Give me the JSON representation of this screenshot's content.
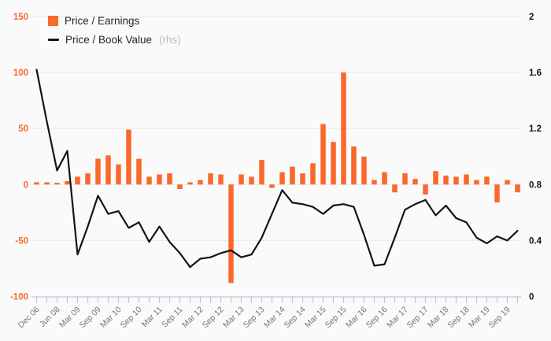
{
  "page": {
    "background": "#fafafa"
  },
  "legend": {
    "items": [
      {
        "label": "Price / Earnings",
        "suffix": "",
        "swatch": "bar",
        "color": "#f9692b"
      },
      {
        "label": "Price / Book Value",
        "suffix": "(rhs)",
        "swatch": "line",
        "color": "#141414"
      }
    ]
  },
  "chart_data": {
    "type": "combo-bar-line",
    "title": "",
    "x_count": 48,
    "x_label_every": 2,
    "x_tick_labels": [
      "Dec 06",
      "Jun 08",
      "Mar 09",
      "Sep 09",
      "Mar 10",
      "Sep 10",
      "Mar 11",
      "Sep 11",
      "Mar 12",
      "Sep 12",
      "Mar 13",
      "Sep 13",
      "Mar 14",
      "Sep 14",
      "Mar 15",
      "Sep 15",
      "Mar 16",
      "Sep 16",
      "Mar 17",
      "Sep 17",
      "Mar 18",
      "Sep 18",
      "Mar 19",
      "Sep 19"
    ],
    "series": [
      {
        "name": "Price / Earnings",
        "type": "bar",
        "axis": "left",
        "color": "#f9692b",
        "values": [
          2,
          2,
          1.5,
          3,
          7,
          10,
          23,
          26,
          18,
          49,
          23,
          7,
          9,
          10,
          -4,
          2,
          4,
          10,
          9,
          -88,
          9,
          7,
          22,
          -3,
          11,
          16,
          10,
          19,
          54,
          38,
          100,
          34,
          25,
          4,
          11,
          -7,
          10,
          5,
          -9,
          12,
          8,
          7,
          9,
          4,
          7,
          -16,
          4,
          -7
        ]
      },
      {
        "name": "Price / Book Value",
        "type": "line",
        "axis": "right",
        "color": "#141414",
        "values": [
          1.62,
          1.25,
          0.9,
          1.04,
          0.3,
          0.5,
          0.72,
          0.59,
          0.61,
          0.49,
          0.53,
          0.39,
          0.5,
          0.39,
          0.31,
          0.21,
          0.27,
          0.28,
          0.31,
          0.33,
          0.28,
          0.3,
          0.42,
          0.59,
          0.76,
          0.67,
          0.66,
          0.64,
          0.59,
          0.65,
          0.66,
          0.64,
          0.44,
          0.22,
          0.23,
          0.42,
          0.62,
          0.66,
          0.69,
          0.58,
          0.65,
          0.56,
          0.53,
          0.42,
          0.38,
          0.43,
          0.4,
          0.47
        ]
      }
    ],
    "left_axis": {
      "min": -100,
      "max": 150,
      "tick_values": [
        150,
        100,
        50,
        0,
        -50,
        -100
      ],
      "tick_labels": [
        "150",
        "100",
        "50",
        "0",
        "-50",
        "-100"
      ],
      "color": "#f9692b"
    },
    "right_axis": {
      "min": 0,
      "max": 2,
      "tick_values": [
        2,
        1.6,
        1.2,
        0.8,
        0.4,
        0
      ],
      "tick_labels": [
        "2",
        "1.6",
        "1.2",
        "0.8",
        "0.4",
        "0"
      ],
      "color": "#161616"
    },
    "grid": true,
    "grid_color": "#e9e9e9",
    "baseline_color": "#bdc5e1",
    "x_label_color": "#76767a",
    "legend_position": "top-left"
  }
}
